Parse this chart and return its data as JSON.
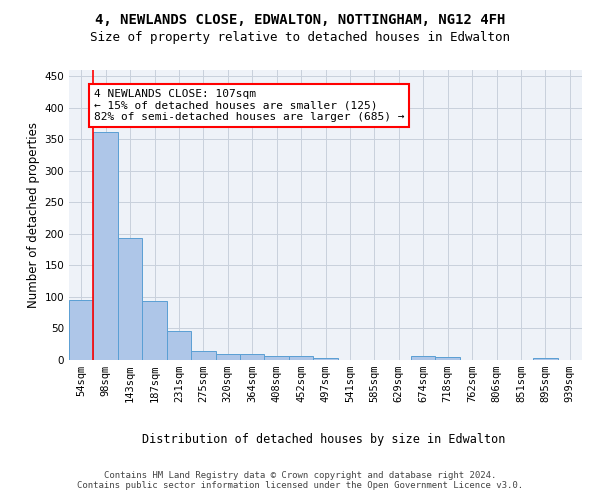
{
  "title1": "4, NEWLANDS CLOSE, EDWALTON, NOTTINGHAM, NG12 4FH",
  "title2": "Size of property relative to detached houses in Edwalton",
  "xlabel": "Distribution of detached houses by size in Edwalton",
  "ylabel": "Number of detached properties",
  "bar_labels": [
    "54sqm",
    "98sqm",
    "143sqm",
    "187sqm",
    "231sqm",
    "275sqm",
    "320sqm",
    "364sqm",
    "408sqm",
    "452sqm",
    "497sqm",
    "541sqm",
    "585sqm",
    "629sqm",
    "674sqm",
    "718sqm",
    "762sqm",
    "806sqm",
    "851sqm",
    "895sqm",
    "939sqm"
  ],
  "bar_values": [
    95,
    362,
    193,
    93,
    46,
    14,
    10,
    10,
    6,
    6,
    3,
    0,
    0,
    0,
    6,
    5,
    0,
    0,
    0,
    3,
    0
  ],
  "bar_color": "#aec6e8",
  "bar_edge_color": "#5a9fd4",
  "property_line_color": "red",
  "annotation_text": "4 NEWLANDS CLOSE: 107sqm\n← 15% of detached houses are smaller (125)\n82% of semi-detached houses are larger (685) →",
  "annotation_box_color": "white",
  "annotation_box_edge_color": "red",
  "ylim": [
    0,
    460
  ],
  "yticks": [
    0,
    50,
    100,
    150,
    200,
    250,
    300,
    350,
    400,
    450
  ],
  "footer_text": "Contains HM Land Registry data © Crown copyright and database right 2024.\nContains public sector information licensed under the Open Government Licence v3.0.",
  "bg_color": "#eef2f8",
  "grid_color": "#c8d0dc",
  "title_fontsize": 10,
  "subtitle_fontsize": 9,
  "axis_label_fontsize": 8.5,
  "tick_fontsize": 7.5,
  "annotation_fontsize": 8,
  "footer_fontsize": 6.5
}
